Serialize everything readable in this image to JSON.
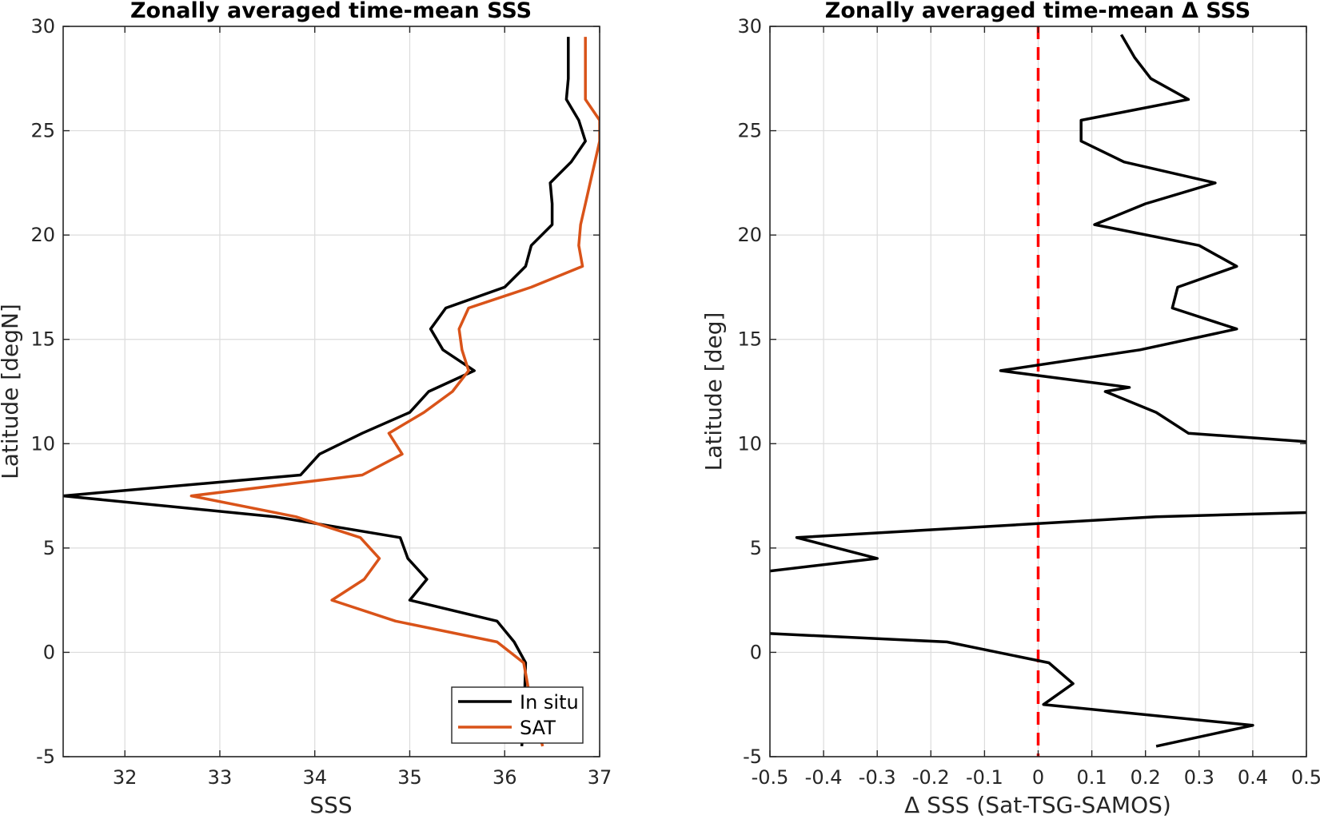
{
  "chart_data": [
    {
      "type": "line",
      "title": "Zonally averaged time-mean SSS",
      "xlabel": "SSS",
      "ylabel": "Latitude [degN]",
      "xlim": [
        31.35,
        37.0
      ],
      "ylim": [
        -5,
        30
      ],
      "xticks": [
        32,
        33,
        34,
        35,
        36,
        37
      ],
      "yticks": [
        -5,
        0,
        5,
        10,
        15,
        20,
        25,
        30
      ],
      "grid": true,
      "legend": "bottom-right",
      "series": [
        {
          "name": "In situ",
          "color": "#000000",
          "x": [
            36.18,
            36.2,
            36.22,
            36.1,
            35.92,
            35.0,
            35.18,
            34.98,
            34.9,
            33.58,
            31.35,
            33.85,
            34.05,
            34.5,
            35.0,
            35.2,
            35.68,
            35.35,
            35.22,
            35.38,
            36.0,
            36.22,
            36.28,
            36.5,
            36.5,
            36.48,
            36.7,
            36.85,
            36.78,
            36.65,
            36.67,
            36.67
          ],
          "y": [
            -4.5,
            -3.5,
            -0.5,
            0.5,
            1.5,
            2.5,
            3.5,
            4.5,
            5.5,
            6.5,
            7.5,
            8.5,
            9.5,
            10.5,
            11.5,
            12.5,
            13.5,
            14.5,
            15.5,
            16.5,
            17.5,
            18.5,
            19.5,
            20.5,
            21.5,
            22.5,
            23.5,
            24.5,
            25.5,
            26.5,
            27.5,
            29.5
          ]
        },
        {
          "name": "SAT",
          "color": "#d95319",
          "x": [
            36.4,
            36.28,
            36.2,
            35.92,
            34.85,
            34.18,
            34.52,
            34.68,
            34.48,
            33.8,
            32.7,
            34.5,
            34.92,
            34.78,
            35.15,
            35.45,
            35.62,
            35.55,
            35.52,
            35.62,
            36.28,
            36.82,
            36.78,
            36.8,
            36.85,
            36.9,
            36.95,
            37.0,
            37.0,
            36.85,
            36.85,
            36.85
          ],
          "y": [
            -4.5,
            -2.5,
            -0.5,
            0.5,
            1.5,
            2.5,
            3.5,
            4.5,
            5.5,
            6.5,
            7.5,
            8.5,
            9.5,
            10.5,
            11.5,
            12.5,
            13.5,
            14.5,
            15.5,
            16.5,
            17.5,
            18.5,
            19.5,
            20.5,
            21.5,
            22.5,
            23.5,
            24.5,
            25.5,
            26.5,
            27.5,
            29.5
          ]
        }
      ]
    },
    {
      "type": "line",
      "title": "Zonally averaged time-mean Δ SSS",
      "xlabel": "Δ SSS (Sat-TSG-SAMOS)",
      "ylabel": "Latitude [deg]",
      "xlim": [
        -0.5,
        0.5
      ],
      "ylim": [
        -5,
        30
      ],
      "xticks": [
        -0.5,
        -0.4,
        -0.3,
        -0.2,
        -0.1,
        0,
        0.1,
        0.2,
        0.3,
        0.4,
        0.5
      ],
      "yticks": [
        -5,
        0,
        5,
        10,
        15,
        20,
        25,
        30
      ],
      "grid": true,
      "reference_line": {
        "x": 0,
        "color": "#ff0000",
        "style": "dashed"
      },
      "segments": [
        {
          "x": [
            0.5,
            0.22,
            -0.45,
            -0.3,
            -0.5
          ],
          "y": [
            6.7,
            6.5,
            5.5,
            4.5,
            3.9
          ]
        },
        {
          "x": [
            -0.5,
            -0.17,
            0.02,
            0.065,
            0.01,
            0.4,
            0.22
          ],
          "y": [
            0.9,
            0.5,
            -0.5,
            -1.5,
            -2.5,
            -3.5,
            -4.5
          ]
        },
        {
          "x": [
            0.5,
            0.28,
            0.22,
            0.125,
            0.17,
            -0.07,
            0.19,
            0.37,
            0.25,
            0.26,
            0.37,
            0.3,
            0.105,
            0.2,
            0.33,
            0.16,
            0.08,
            0.08,
            0.28,
            0.21,
            0.18,
            0.155
          ],
          "y": [
            10.1,
            10.5,
            11.5,
            12.5,
            12.7,
            13.5,
            14.5,
            15.5,
            16.5,
            17.5,
            18.5,
            19.5,
            20.5,
            21.5,
            22.5,
            23.5,
            24.5,
            25.5,
            26.5,
            27.5,
            28.5,
            29.6
          ]
        }
      ]
    }
  ]
}
